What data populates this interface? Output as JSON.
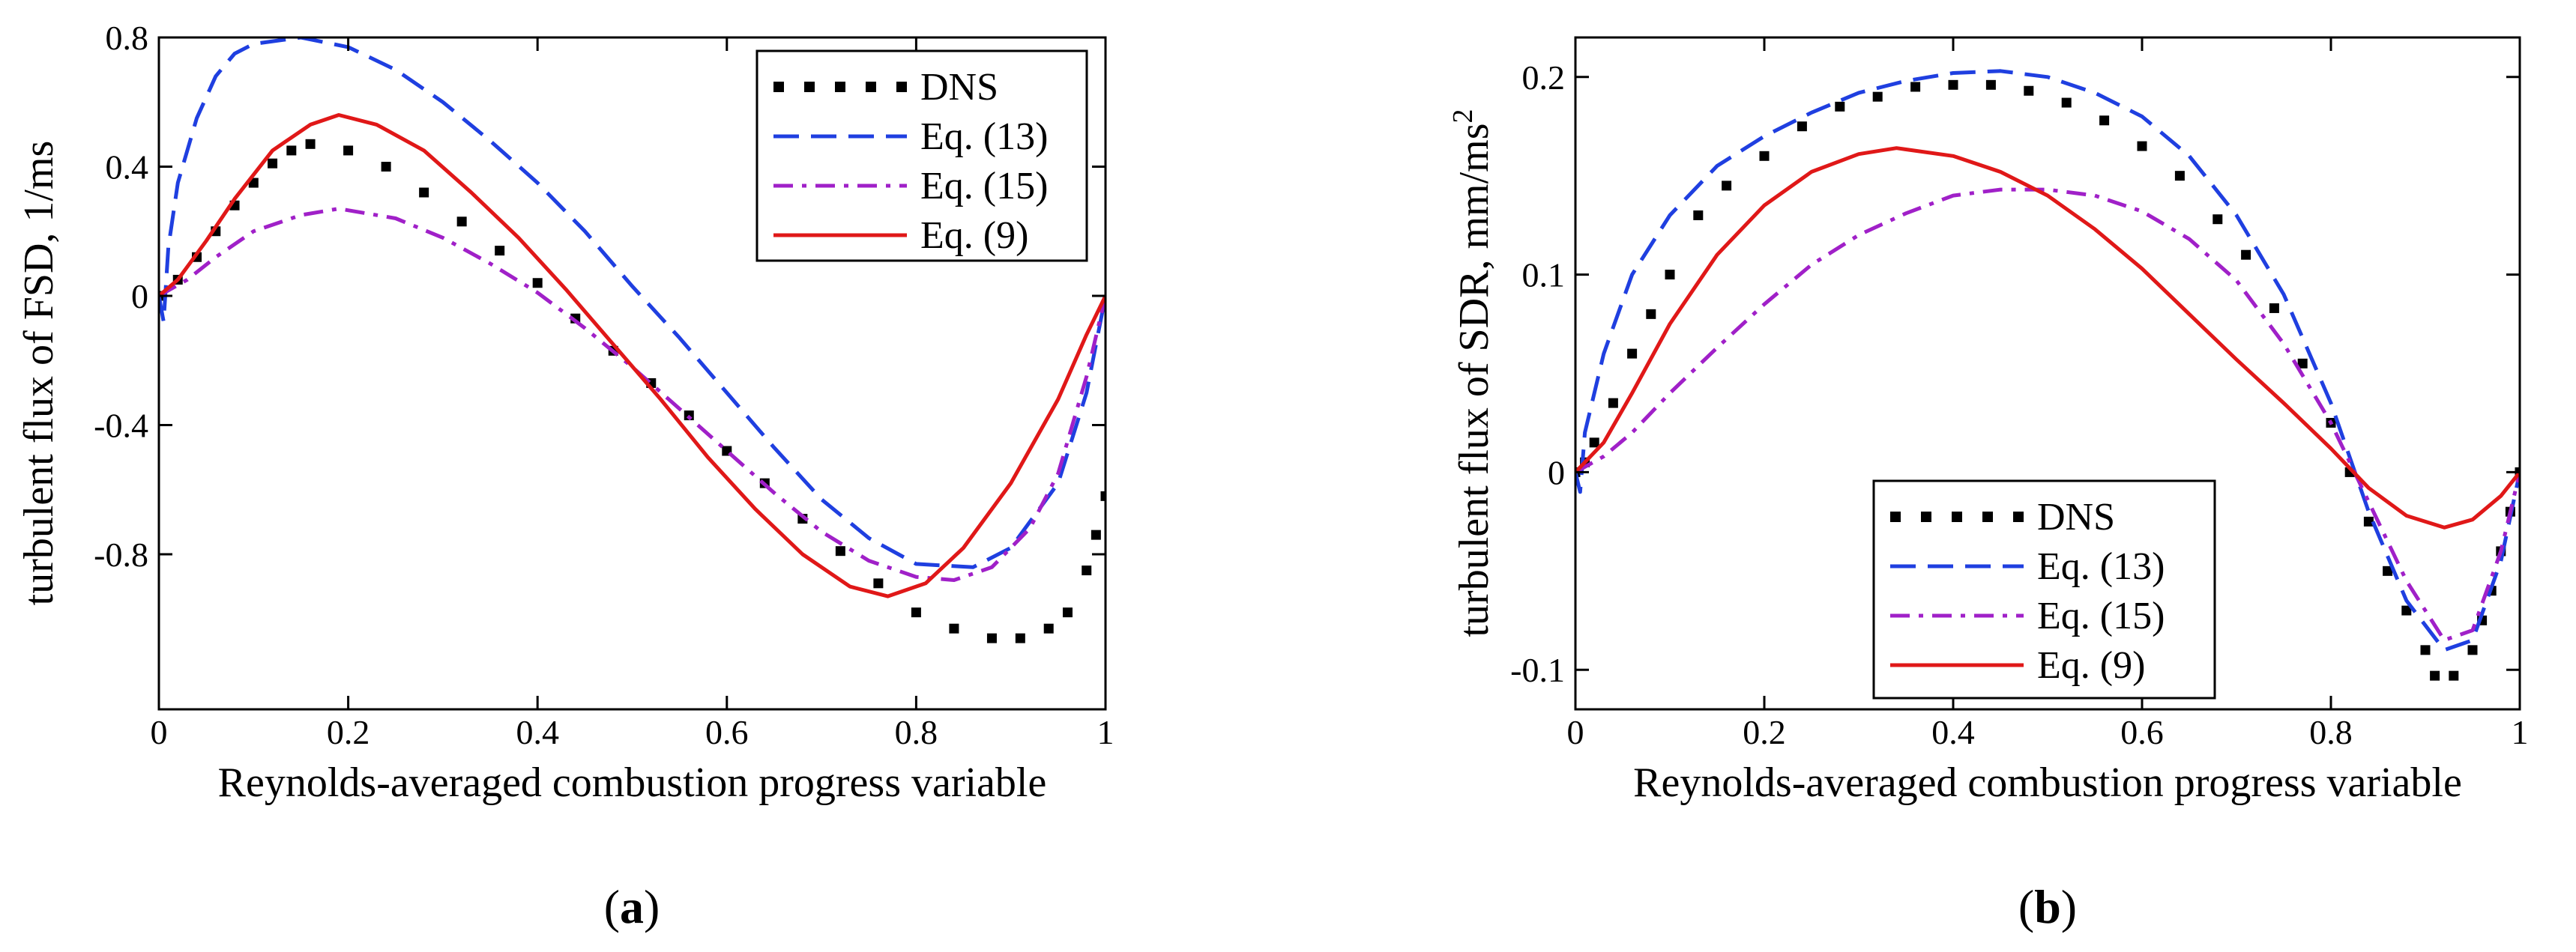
{
  "chart_data": [
    {
      "type": "line",
      "panel_label_open": "(",
      "panel_label_letter": "a",
      "panel_label_close": ")",
      "xlabel": "Reynolds-averaged combustion progress variable",
      "ylabel": "turbulent flux of FSD, 1/ms",
      "xlim": [
        0,
        1
      ],
      "ylim": [
        -1.28,
        0.8
      ],
      "xticks": [
        0,
        0.2,
        0.4,
        0.6,
        0.8,
        1
      ],
      "xtick_labels": [
        "0",
        "0.2",
        "0.4",
        "0.6",
        "0.8",
        "1"
      ],
      "yticks": [
        0.8,
        0.4,
        0,
        -0.4,
        -0.8
      ],
      "ytick_labels": [
        "0.8",
        "0.4",
        "0",
        "-0.4",
        "-0.8"
      ],
      "grid": false,
      "legend_position": "top-right",
      "series": [
        {
          "name": "DNS",
          "style": "dotted-squares",
          "color": "#000000",
          "points": [
            [
              0,
              0
            ],
            [
              0.02,
              0.05
            ],
            [
              0.04,
              0.12
            ],
            [
              0.06,
              0.2
            ],
            [
              0.08,
              0.28
            ],
            [
              0.1,
              0.35
            ],
            [
              0.12,
              0.41
            ],
            [
              0.14,
              0.45
            ],
            [
              0.16,
              0.47
            ],
            [
              0.2,
              0.45
            ],
            [
              0.24,
              0.4
            ],
            [
              0.28,
              0.32
            ],
            [
              0.32,
              0.23
            ],
            [
              0.36,
              0.14
            ],
            [
              0.4,
              0.04
            ],
            [
              0.44,
              -0.07
            ],
            [
              0.48,
              -0.17
            ],
            [
              0.52,
              -0.27
            ],
            [
              0.56,
              -0.37
            ],
            [
              0.6,
              -0.48
            ],
            [
              0.64,
              -0.58
            ],
            [
              0.68,
              -0.69
            ],
            [
              0.72,
              -0.79
            ],
            [
              0.76,
              -0.89
            ],
            [
              0.8,
              -0.98
            ],
            [
              0.84,
              -1.03
            ],
            [
              0.88,
              -1.06
            ],
            [
              0.91,
              -1.06
            ],
            [
              0.94,
              -1.03
            ],
            [
              0.96,
              -0.98
            ],
            [
              0.98,
              -0.85
            ],
            [
              0.99,
              -0.74
            ],
            [
              1,
              -0.62
            ]
          ]
        },
        {
          "name": "Eq. (13)",
          "style": "dashed",
          "color": "#1f3fe0",
          "points": [
            [
              0,
              0
            ],
            [
              0.005,
              -0.08
            ],
            [
              0.01,
              0.15
            ],
            [
              0.02,
              0.35
            ],
            [
              0.04,
              0.55
            ],
            [
              0.06,
              0.68
            ],
            [
              0.08,
              0.75
            ],
            [
              0.1,
              0.78
            ],
            [
              0.15,
              0.8
            ],
            [
              0.2,
              0.77
            ],
            [
              0.25,
              0.7
            ],
            [
              0.3,
              0.6
            ],
            [
              0.35,
              0.48
            ],
            [
              0.4,
              0.35
            ],
            [
              0.45,
              0.2
            ],
            [
              0.5,
              0.03
            ],
            [
              0.55,
              -0.13
            ],
            [
              0.6,
              -0.3
            ],
            [
              0.65,
              -0.47
            ],
            [
              0.7,
              -0.63
            ],
            [
              0.75,
              -0.75
            ],
            [
              0.8,
              -0.83
            ],
            [
              0.86,
              -0.84
            ],
            [
              0.9,
              -0.78
            ],
            [
              0.95,
              -0.58
            ],
            [
              0.98,
              -0.3
            ],
            [
              1,
              0
            ]
          ]
        },
        {
          "name": "Eq. (15)",
          "style": "dash-dot",
          "color": "#a020c8",
          "points": [
            [
              0,
              0
            ],
            [
              0.03,
              0.05
            ],
            [
              0.06,
              0.12
            ],
            [
              0.1,
              0.2
            ],
            [
              0.15,
              0.25
            ],
            [
              0.19,
              0.27
            ],
            [
              0.25,
              0.24
            ],
            [
              0.3,
              0.18
            ],
            [
              0.35,
              0.1
            ],
            [
              0.4,
              0.01
            ],
            [
              0.45,
              -0.1
            ],
            [
              0.5,
              -0.22
            ],
            [
              0.55,
              -0.35
            ],
            [
              0.6,
              -0.48
            ],
            [
              0.65,
              -0.61
            ],
            [
              0.7,
              -0.73
            ],
            [
              0.75,
              -0.82
            ],
            [
              0.8,
              -0.87
            ],
            [
              0.84,
              -0.88
            ],
            [
              0.88,
              -0.84
            ],
            [
              0.92,
              -0.72
            ],
            [
              0.95,
              -0.55
            ],
            [
              0.98,
              -0.25
            ],
            [
              1,
              0
            ]
          ]
        },
        {
          "name": "Eq. (9)",
          "style": "solid",
          "color": "#e01818",
          "points": [
            [
              0,
              0
            ],
            [
              0.02,
              0.05
            ],
            [
              0.05,
              0.17
            ],
            [
              0.08,
              0.3
            ],
            [
              0.12,
              0.45
            ],
            [
              0.16,
              0.53
            ],
            [
              0.19,
              0.56
            ],
            [
              0.23,
              0.53
            ],
            [
              0.28,
              0.45
            ],
            [
              0.33,
              0.32
            ],
            [
              0.38,
              0.18
            ],
            [
              0.43,
              0.02
            ],
            [
              0.48,
              -0.15
            ],
            [
              0.53,
              -0.32
            ],
            [
              0.58,
              -0.5
            ],
            [
              0.63,
              -0.66
            ],
            [
              0.68,
              -0.8
            ],
            [
              0.73,
              -0.9
            ],
            [
              0.77,
              -0.93
            ],
            [
              0.81,
              -0.89
            ],
            [
              0.85,
              -0.78
            ],
            [
              0.9,
              -0.58
            ],
            [
              0.95,
              -0.32
            ],
            [
              0.98,
              -0.12
            ],
            [
              1,
              0
            ]
          ]
        }
      ]
    },
    {
      "type": "line",
      "panel_label_open": "(",
      "panel_label_letter": "b",
      "panel_label_close": ")",
      "xlabel": "Reynolds-averaged combustion progress variable",
      "ylabel": "turbulent flux of SDR, mm/ms",
      "ylabel_superscript": "2",
      "xlim": [
        0,
        1
      ],
      "ylim": [
        -0.12,
        0.22
      ],
      "xticks": [
        0,
        0.2,
        0.4,
        0.6,
        0.8,
        1
      ],
      "xtick_labels": [
        "0",
        "0.2",
        "0.4",
        "0.6",
        "0.8",
        "1"
      ],
      "yticks": [
        0.2,
        0.1,
        0,
        -0.1
      ],
      "ytick_labels": [
        "0.2",
        "0.1",
        "0",
        "-0.1"
      ],
      "grid": false,
      "legend_position": "bottom-center",
      "series": [
        {
          "name": "DNS",
          "style": "dotted-squares",
          "color": "#000000",
          "points": [
            [
              0,
              0
            ],
            [
              0.01,
              0.005
            ],
            [
              0.02,
              0.015
            ],
            [
              0.04,
              0.035
            ],
            [
              0.06,
              0.06
            ],
            [
              0.08,
              0.08
            ],
            [
              0.1,
              0.1
            ],
            [
              0.13,
              0.13
            ],
            [
              0.16,
              0.145
            ],
            [
              0.2,
              0.16
            ],
            [
              0.24,
              0.175
            ],
            [
              0.28,
              0.185
            ],
            [
              0.32,
              0.19
            ],
            [
              0.36,
              0.195
            ],
            [
              0.4,
              0.196
            ],
            [
              0.44,
              0.196
            ],
            [
              0.48,
              0.193
            ],
            [
              0.52,
              0.187
            ],
            [
              0.56,
              0.178
            ],
            [
              0.6,
              0.165
            ],
            [
              0.64,
              0.15
            ],
            [
              0.68,
              0.128
            ],
            [
              0.71,
              0.11
            ],
            [
              0.74,
              0.083
            ],
            [
              0.77,
              0.055
            ],
            [
              0.8,
              0.025
            ],
            [
              0.82,
              0
            ],
            [
              0.84,
              -0.025
            ],
            [
              0.86,
              -0.05
            ],
            [
              0.88,
              -0.07
            ],
            [
              0.9,
              -0.09
            ],
            [
              0.91,
              -0.103
            ],
            [
              0.93,
              -0.103
            ],
            [
              0.95,
              -0.09
            ],
            [
              0.96,
              -0.075
            ],
            [
              0.97,
              -0.06
            ],
            [
              0.98,
              -0.04
            ],
            [
              0.99,
              -0.02
            ],
            [
              1,
              0
            ]
          ]
        },
        {
          "name": "Eq. (13)",
          "style": "dashed",
          "color": "#1f3fe0",
          "points": [
            [
              0,
              0
            ],
            [
              0.005,
              -0.01
            ],
            [
              0.01,
              0.02
            ],
            [
              0.03,
              0.06
            ],
            [
              0.06,
              0.1
            ],
            [
              0.1,
              0.13
            ],
            [
              0.15,
              0.155
            ],
            [
              0.2,
              0.17
            ],
            [
              0.25,
              0.182
            ],
            [
              0.3,
              0.192
            ],
            [
              0.35,
              0.198
            ],
            [
              0.4,
              0.202
            ],
            [
              0.45,
              0.203
            ],
            [
              0.5,
              0.2
            ],
            [
              0.55,
              0.192
            ],
            [
              0.6,
              0.18
            ],
            [
              0.65,
              0.16
            ],
            [
              0.7,
              0.13
            ],
            [
              0.75,
              0.09
            ],
            [
              0.8,
              0.035
            ],
            [
              0.84,
              -0.02
            ],
            [
              0.88,
              -0.065
            ],
            [
              0.92,
              -0.09
            ],
            [
              0.95,
              -0.085
            ],
            [
              0.98,
              -0.045
            ],
            [
              1,
              0
            ]
          ]
        },
        {
          "name": "Eq. (15)",
          "style": "dash-dot",
          "color": "#a020c8",
          "points": [
            [
              0,
              0
            ],
            [
              0.03,
              0.008
            ],
            [
              0.06,
              0.02
            ],
            [
              0.1,
              0.04
            ],
            [
              0.15,
              0.063
            ],
            [
              0.2,
              0.085
            ],
            [
              0.25,
              0.105
            ],
            [
              0.3,
              0.12
            ],
            [
              0.35,
              0.131
            ],
            [
              0.4,
              0.14
            ],
            [
              0.45,
              0.143
            ],
            [
              0.5,
              0.143
            ],
            [
              0.55,
              0.14
            ],
            [
              0.6,
              0.132
            ],
            [
              0.65,
              0.118
            ],
            [
              0.7,
              0.097
            ],
            [
              0.75,
              0.065
            ],
            [
              0.8,
              0.025
            ],
            [
              0.84,
              -0.015
            ],
            [
              0.88,
              -0.055
            ],
            [
              0.92,
              -0.085
            ],
            [
              0.95,
              -0.08
            ],
            [
              0.98,
              -0.04
            ],
            [
              1,
              0
            ]
          ]
        },
        {
          "name": "Eq. (9)",
          "style": "solid",
          "color": "#e01818",
          "points": [
            [
              0,
              0
            ],
            [
              0.03,
              0.015
            ],
            [
              0.06,
              0.04
            ],
            [
              0.1,
              0.075
            ],
            [
              0.15,
              0.11
            ],
            [
              0.2,
              0.135
            ],
            [
              0.25,
              0.152
            ],
            [
              0.3,
              0.161
            ],
            [
              0.34,
              0.164
            ],
            [
              0.4,
              0.16
            ],
            [
              0.45,
              0.152
            ],
            [
              0.5,
              0.14
            ],
            [
              0.55,
              0.123
            ],
            [
              0.6,
              0.103
            ],
            [
              0.65,
              0.08
            ],
            [
              0.7,
              0.057
            ],
            [
              0.75,
              0.035
            ],
            [
              0.8,
              0.012
            ],
            [
              0.84,
              -0.008
            ],
            [
              0.88,
              -0.022
            ],
            [
              0.92,
              -0.028
            ],
            [
              0.95,
              -0.024
            ],
            [
              0.98,
              -0.012
            ],
            [
              1,
              0
            ]
          ]
        }
      ]
    }
  ]
}
